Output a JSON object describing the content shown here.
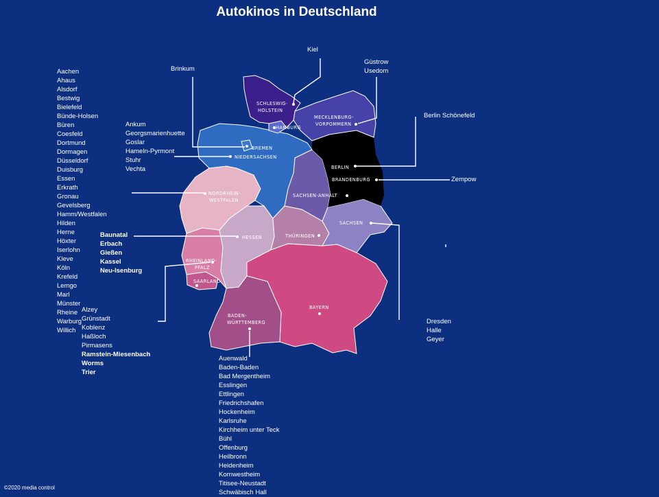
{
  "title": "Autokinos in Deutschland",
  "copyright": "©2020 media control",
  "colors": {
    "background": "#0c2f7f",
    "schleswig_holstein": "#3b1f8a",
    "hamburg": "#5a6ad0",
    "mecklenburg": "#4742a8",
    "niedersachsen": "#2f6bc0",
    "bremen": "#3a7acd",
    "berlin_brandenburg": "#6a86cc",
    "sachsen_anhalt": "#6b5aa8",
    "sachsen": "#8c82c4",
    "nordrhein_westfalen": "#e6b4c4",
    "hessen": "#c8a8c8",
    "thueringen": "#b480a8",
    "rheinland_pfalz": "#d97fa5",
    "saarland": "#c0588e",
    "baden_wuerttemberg": "#a24e88",
    "bayern": "#cf4a82"
  },
  "states": {
    "schleswig_holstein": [
      "SCHLESWIG-",
      "HOLSTEIN"
    ],
    "hamburg": "HAMBURG",
    "mecklenburg": [
      "MECKLENBURG-",
      "VORPOMMERN"
    ],
    "bremen": "BREMEN",
    "niedersachsen": "NIEDERSACHSEN",
    "berlin": "BERLIN",
    "brandenburg": "BRANDENBURG",
    "sachsen_anhalt": "SACHSEN-ANHALT",
    "nordrhein_westfalen": [
      "NORDRHEIN-",
      "WESTFALEN"
    ],
    "sachsen": "SACHSEN",
    "hessen": "HESSEN",
    "thueringen": "THÜRINGEN",
    "rheinland_pfalz": [
      "RHEINLAND-",
      "PFALZ"
    ],
    "saarland": "SAARLAND",
    "baden_wuerttemberg": [
      "BADEN-",
      "WÜRTTEMBERG"
    ],
    "bayern": "BAYERN"
  },
  "lists": {
    "nordrhein_westfalen": [
      "Aachen",
      "Ahaus",
      "Alsdorf",
      "Bestwig",
      "Bielefeld",
      "Bünde-Holsen",
      "Büren",
      "Coesfeld",
      "Dortmund",
      "Dormagen",
      "Düsseldorf",
      "Duisburg",
      "Essen",
      "Erkrath",
      "Gronau",
      "Gevelsberg",
      "Hamm/Westfalen",
      "Hilden",
      "Herne",
      "Höxter",
      "Iserlohn",
      "Kleve",
      "Köln",
      "Krefeld",
      "Lemgo",
      "Marl",
      "Münster",
      "Rheine",
      "Warburg",
      "Willich"
    ],
    "niedersachsen": [
      "Ankum",
      "Georgsmarienhuette",
      "Goslar",
      "Hameln-Pyrmont",
      "Stuhr",
      "Vechta"
    ],
    "hessen": [
      "Baunatal",
      "Erbach",
      "Gießen",
      "Kassel",
      "Neu-Isenburg"
    ],
    "rheinland_pfalz_regular": [
      "Alzey",
      "Grünstadt",
      "Koblenz",
      "Haßloch",
      "Pirmasens"
    ],
    "rheinland_pfalz_bold": [
      "Ramstein-Miesenbach",
      "Worms",
      "Trier"
    ],
    "baden_wuerttemberg": [
      "Auenwald",
      "Baden-Baden",
      "Bad Mergentheim",
      "Esslingen",
      "Ettlingen",
      "Friedrichshafen",
      "Hockenheim",
      "Karlsruhe",
      "Kirchheim unter  Teck",
      "Bühl",
      "Offenburg",
      "Heilbronn",
      "Heidenheim",
      "Kornwestheim",
      "Titisee-Neustadt",
      "Schwäbisch Hall"
    ],
    "sachsen": [
      "Dresden",
      "Halle",
      "Geyer"
    ],
    "mecklenburg": [
      "Güstrow",
      "Usedom"
    ]
  },
  "single_labels": {
    "kiel": "Kiel",
    "brinkum": "Brinkum",
    "berlin": "Berlin Schönefeld",
    "brandenburg": "Zempow"
  }
}
